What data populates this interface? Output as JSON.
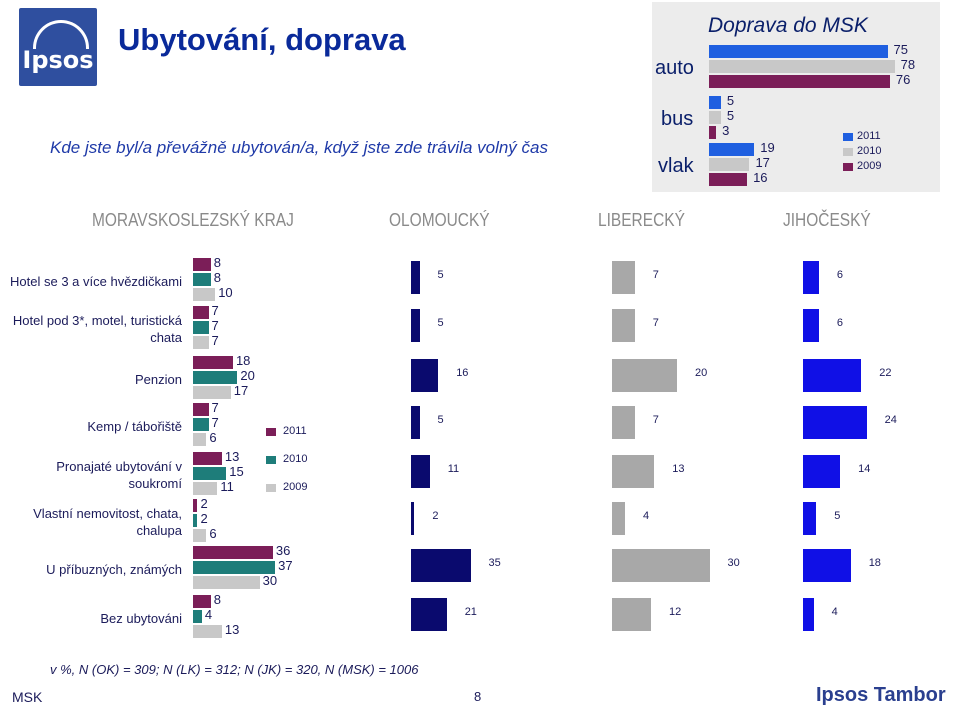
{
  "title": "Ubytování, doprava",
  "question": "Kde jste byl/a převážně ubytován/a, když jste zde trávila volný čas",
  "logo_text": "Ipsos",
  "footnote": "v %, N (OK) = 309; N (LK) = 312; N (JK) = 320, N (MSK) = 1006",
  "footer": {
    "left": "MSK",
    "page": "8",
    "brand": "Ipsos Tambor"
  },
  "colors": {
    "y2011": "#7b1e58",
    "y2010": "#1e7d7a",
    "y2009": "#c8c8c8",
    "region_bar": "#0a0a6e",
    "jk_bar": "#1010e6",
    "lk_bar": "#a8a8a8",
    "t2011": "#1f5fe0",
    "t2010": "#c8c8c8",
    "t2009": "#7b1e58"
  },
  "chart_data": [
    {
      "type": "bar",
      "title": "MORAVSKOSLEZSKÝ KRAJ",
      "categories": [
        "Hotel se 3 a více hvězdičkami",
        "Hotel pod 3*, motel, turistická chata",
        "Penzion",
        "Kemp / tábořiště",
        "Pronajaté ubytování v soukromí",
        "Vlastní nemovitost, chata, chalupa",
        "U příbuzných, známých",
        "Bez ubytováni"
      ],
      "series": [
        {
          "name": "2011",
          "values": [
            8,
            7,
            18,
            7,
            13,
            2,
            36,
            8
          ]
        },
        {
          "name": "2010",
          "values": [
            8,
            7,
            20,
            7,
            15,
            2,
            37,
            4
          ]
        },
        {
          "name": "2009",
          "values": [
            10,
            7,
            17,
            6,
            11,
            6,
            30,
            13
          ]
        }
      ],
      "legend": "right"
    },
    {
      "type": "bar",
      "title": "OLOMOUCKÝ",
      "categories": [
        "Hotel se 3 a více hvězdičkami",
        "Hotel pod 3*, motel, turistická chata",
        "Penzion",
        "Kemp / tábořiště",
        "Pronajaté ubytování v soukromí",
        "Vlastní nemovitost, chata, chalupa",
        "U příbuzných, známých",
        "Bez ubytováni"
      ],
      "values": [
        5,
        5,
        16,
        5,
        11,
        2,
        35,
        21
      ]
    },
    {
      "type": "bar",
      "title": "LIBERECKÝ",
      "categories": [
        "Hotel se 3 a více hvězdičkami",
        "Hotel pod 3*, motel, turistická chata",
        "Penzion",
        "Kemp / tábořiště",
        "Pronajaté ubytování v soukromí",
        "Vlastní nemovitost, chata, chalupa",
        "U příbuzných, známých",
        "Bez ubytováni"
      ],
      "values": [
        7,
        7,
        20,
        7,
        13,
        4,
        30,
        12
      ]
    },
    {
      "type": "bar",
      "title": "JIHOČESKÝ",
      "categories": [
        "Hotel se 3 a více hvězdičkami",
        "Hotel pod 3*, motel, turistická chata",
        "Penzion",
        "Kemp / tábořiště",
        "Pronajaté ubytování v soukromí",
        "Vlastní nemovitost, chata, chalupa",
        "U příbuzných, známých",
        "Bez ubytováni"
      ],
      "values": [
        6,
        6,
        22,
        24,
        14,
        5,
        18,
        4
      ]
    },
    {
      "type": "bar",
      "title": "Doprava do MSK",
      "categories": [
        "auto",
        "bus",
        "vlak"
      ],
      "series": [
        {
          "name": "2011",
          "values": [
            75,
            5,
            19
          ]
        },
        {
          "name": "2010",
          "values": [
            78,
            5,
            17
          ]
        },
        {
          "name": "2009",
          "values": [
            76,
            3,
            16
          ]
        }
      ],
      "legend": "right"
    }
  ]
}
